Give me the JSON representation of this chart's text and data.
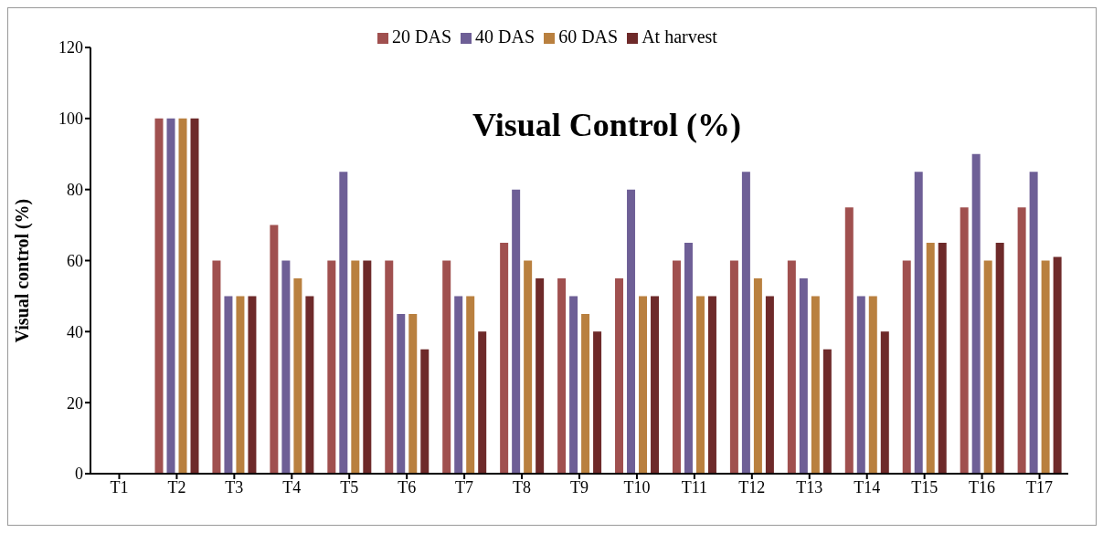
{
  "chart_data": {
    "type": "bar",
    "title": "Visual Control (%)",
    "ylabel": "Visual control (%)",
    "categories": [
      "T1",
      "T2",
      "T3",
      "T4",
      "T5",
      "T6",
      "T7",
      "T8",
      "T9",
      "T10",
      "T11",
      "T12",
      "T13",
      "T14",
      "T15",
      "T16",
      "T17"
    ],
    "series": [
      {
        "name": "20 DAS",
        "color": "#a0504f",
        "values": [
          0,
          100,
          60,
          70,
          60,
          60,
          60,
          65,
          55,
          55,
          60,
          60,
          60,
          75,
          60,
          75,
          75
        ]
      },
      {
        "name": "40 DAS",
        "color": "#6e5f96",
        "values": [
          0,
          100,
          50,
          60,
          85,
          45,
          50,
          80,
          50,
          80,
          65,
          85,
          55,
          50,
          85,
          90,
          85
        ]
      },
      {
        "name": "60 DAS",
        "color": "#b9803f",
        "values": [
          0,
          100,
          50,
          55,
          60,
          45,
          50,
          60,
          45,
          50,
          50,
          55,
          50,
          50,
          65,
          60,
          60
        ]
      },
      {
        "name": "At harvest",
        "color": "#6e2a2a",
        "values": [
          0,
          100,
          50,
          50,
          60,
          35,
          40,
          55,
          40,
          50,
          50,
          50,
          35,
          40,
          65,
          65,
          61
        ]
      }
    ],
    "ylim": [
      0,
      120
    ],
    "yticks": [
      0,
      20,
      40,
      60,
      80,
      100,
      120
    ],
    "legend": "top"
  }
}
